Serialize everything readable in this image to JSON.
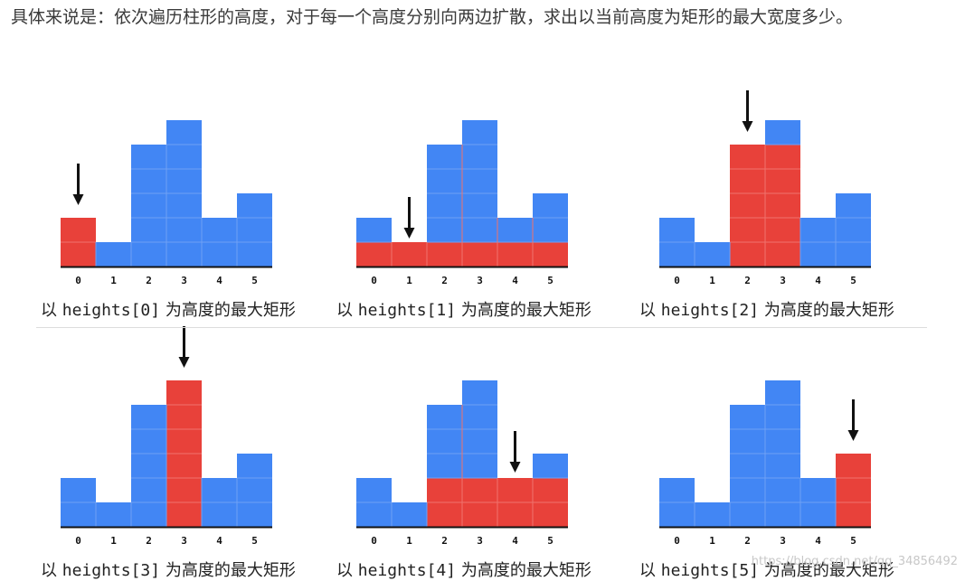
{
  "intro_text": "具体来说是：依次遍历柱形的高度，对于每一个高度分别向两边扩散，求出以当前高度为矩形的最大宽度多少。",
  "colors": {
    "bar": "#4286f4",
    "highlight": "#e8413a",
    "axis": "#111111",
    "arrow": "#111111",
    "grid": "#6fa0f5"
  },
  "chart_data": [
    {
      "type": "bar",
      "categories": [
        "0",
        "1",
        "2",
        "3",
        "4",
        "5"
      ],
      "values": [
        2,
        1,
        5,
        6,
        2,
        3
      ],
      "current_index": 0,
      "rectangle": {
        "from": 0,
        "to": 0,
        "height": 2
      },
      "caption_prefix": "以 ",
      "caption_code": "heights[0]",
      "caption_suffix": " 为高度的最大矩形"
    },
    {
      "type": "bar",
      "categories": [
        "0",
        "1",
        "2",
        "3",
        "4",
        "5"
      ],
      "values": [
        2,
        1,
        5,
        6,
        2,
        3
      ],
      "current_index": 1,
      "rectangle": {
        "from": 0,
        "to": 5,
        "height": 1
      },
      "caption_prefix": "以 ",
      "caption_code": "heights[1]",
      "caption_suffix": " 为高度的最大矩形"
    },
    {
      "type": "bar",
      "categories": [
        "0",
        "1",
        "2",
        "3",
        "4",
        "5"
      ],
      "values": [
        2,
        1,
        5,
        6,
        2,
        3
      ],
      "current_index": 2,
      "rectangle": {
        "from": 2,
        "to": 3,
        "height": 5
      },
      "caption_prefix": "以 ",
      "caption_code": "heights[2]",
      "caption_suffix": " 为高度的最大矩形"
    },
    {
      "type": "bar",
      "categories": [
        "0",
        "1",
        "2",
        "3",
        "4",
        "5"
      ],
      "values": [
        2,
        1,
        5,
        6,
        2,
        3
      ],
      "current_index": 3,
      "rectangle": {
        "from": 3,
        "to": 3,
        "height": 6
      },
      "caption_prefix": "以 ",
      "caption_code": "heights[3]",
      "caption_suffix": " 为高度的最大矩形"
    },
    {
      "type": "bar",
      "categories": [
        "0",
        "1",
        "2",
        "3",
        "4",
        "5"
      ],
      "values": [
        2,
        1,
        5,
        6,
        2,
        3
      ],
      "current_index": 4,
      "rectangle": {
        "from": 2,
        "to": 5,
        "height": 2
      },
      "caption_prefix": "以 ",
      "caption_code": "heights[4]",
      "caption_suffix": " 为高度的最大矩形"
    },
    {
      "type": "bar",
      "categories": [
        "0",
        "1",
        "2",
        "3",
        "4",
        "5"
      ],
      "values": [
        2,
        1,
        5,
        6,
        2,
        3
      ],
      "current_index": 5,
      "rectangle": {
        "from": 5,
        "to": 5,
        "height": 3
      },
      "caption_prefix": "以 ",
      "caption_code": "heights[5]",
      "caption_suffix": " 为高度的最大矩形"
    }
  ],
  "watermark": "https://blog.csdn.net/qq_34856492"
}
